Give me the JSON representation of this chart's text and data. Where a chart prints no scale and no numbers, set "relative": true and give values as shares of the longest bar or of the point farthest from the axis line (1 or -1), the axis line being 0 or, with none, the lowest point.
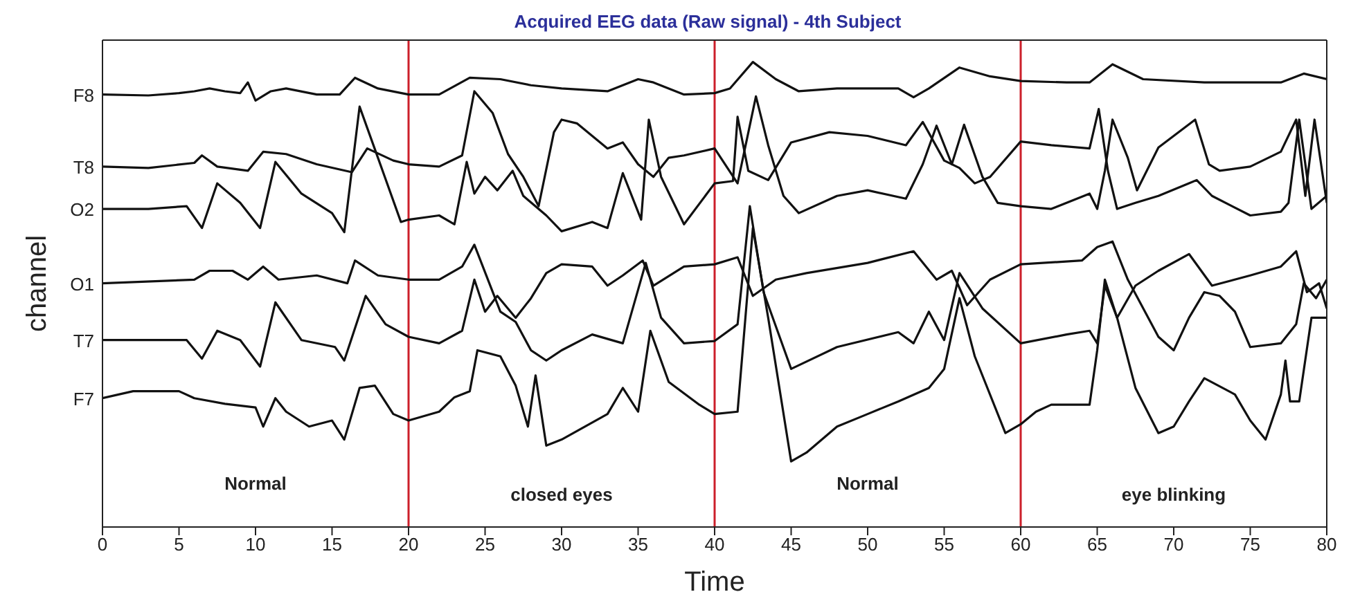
{
  "chart_data": {
    "type": "line",
    "title": "Acquired EEG data (Raw signal) - 4th Subject",
    "xlabel": "Time",
    "ylabel": "channel",
    "xlim": [
      0,
      80
    ],
    "xticks": [
      0,
      5,
      10,
      15,
      20,
      25,
      30,
      35,
      40,
      45,
      50,
      55,
      60,
      65,
      70,
      75,
      80
    ],
    "relative": true,
    "grid": false,
    "marker": "none",
    "line_style": "solid",
    "ref_lines": [
      {
        "axis": "x",
        "value": 20,
        "color": "#cc1f2a"
      },
      {
        "axis": "x",
        "value": 40,
        "color": "#cc1f2a"
      },
      {
        "axis": "x",
        "value": 60,
        "color": "#cc1f2a"
      }
    ],
    "annotations": [
      "Normal",
      "closed eyes",
      "Normal",
      "eye blinking"
    ],
    "series": [
      {
        "name": "F8",
        "color": "#111111",
        "x": [
          0,
          3,
          5,
          6,
          7,
          8,
          9,
          9.5,
          10,
          11,
          12,
          14,
          15.5,
          16.5,
          18,
          20,
          22,
          24,
          26,
          28,
          30,
          33,
          35,
          36,
          38,
          40,
          41,
          42.5,
          44,
          45.5,
          48,
          52,
          53,
          54,
          56,
          58,
          60,
          63,
          64.5,
          66,
          68,
          72,
          77,
          78.5,
          80
        ],
        "values": [
          0.93,
          0.928,
          0.933,
          0.937,
          0.943,
          0.937,
          0.933,
          0.956,
          0.917,
          0.937,
          0.943,
          0.93,
          0.93,
          0.966,
          0.943,
          0.93,
          0.93,
          0.966,
          0.963,
          0.95,
          0.943,
          0.937,
          0.963,
          0.956,
          0.93,
          0.933,
          0.943,
          1,
          0.963,
          0.937,
          0.943,
          0.943,
          0.924,
          0.943,
          0.988,
          0.969,
          0.959,
          0.956,
          0.956,
          0.995,
          0.963,
          0.956,
          0.956,
          0.975,
          0.963
        ]
      },
      {
        "name": "T8",
        "color": "#111111",
        "x": [
          0,
          3,
          6,
          6.5,
          7.5,
          9.5,
          10.5,
          12,
          14,
          16.3,
          17.3,
          19,
          20,
          22,
          23.5,
          24.3,
          25.5,
          26.5,
          27.5,
          28.5,
          29.5,
          30,
          31,
          33,
          34,
          35,
          36,
          37,
          38,
          40,
          41.5,
          42.7,
          43.5,
          44.5,
          45.5,
          48,
          50,
          52.5,
          53.6,
          54.5,
          55.5,
          56.3,
          57.5,
          58.5,
          60,
          62,
          64.5,
          65,
          65.5,
          66,
          67,
          67.6,
          69,
          71.4,
          72.3,
          73,
          75,
          77,
          78,
          78.6,
          79.2,
          80
        ],
        "values": [
          0.775,
          0.772,
          0.783,
          0.799,
          0.775,
          0.766,
          0.807,
          0.802,
          0.78,
          0.763,
          0.814,
          0.788,
          0.78,
          0.775,
          0.799,
          0.937,
          0.89,
          0.802,
          0.753,
          0.69,
          0.849,
          0.876,
          0.868,
          0.814,
          0.827,
          0.78,
          0.753,
          0.794,
          0.799,
          0.814,
          0.739,
          0.926,
          0.821,
          0.712,
          0.675,
          0.712,
          0.724,
          0.706,
          0.78,
          0.863,
          0.78,
          0.865,
          0.753,
          0.697,
          0.69,
          0.684,
          0.717,
          0.684,
          0.766,
          0.876,
          0.794,
          0.724,
          0.816,
          0.876,
          0.78,
          0.766,
          0.775,
          0.807,
          0.876,
          0.712,
          0.876,
          0.697
        ]
      },
      {
        "name": "O2",
        "color": "#111111",
        "x": [
          0,
          3,
          5.5,
          6.5,
          7.5,
          9,
          10.3,
          11.3,
          13,
          15,
          15.8,
          16.8,
          18,
          19.5,
          20,
          22,
          23,
          23.8,
          24.3,
          25,
          25.8,
          26.8,
          27.5,
          29,
          30,
          32,
          33,
          34,
          35.2,
          35.7,
          36.5,
          38,
          40,
          41.2,
          41.5,
          42.2,
          43.5,
          45,
          47.5,
          50,
          52.5,
          53.6,
          55,
          56,
          57,
          58,
          60,
          62,
          64.5,
          65.1,
          65.7,
          66.3,
          67.5,
          69,
          71,
          71.5,
          72.5,
          75,
          77,
          77.5,
          78.2,
          79,
          80
        ],
        "values": [
          0.684,
          0.684,
          0.69,
          0.643,
          0.739,
          0.697,
          0.643,
          0.785,
          0.717,
          0.675,
          0.634,
          0.904,
          0.794,
          0.656,
          0.661,
          0.67,
          0.651,
          0.785,
          0.717,
          0.753,
          0.724,
          0.766,
          0.712,
          0.67,
          0.636,
          0.656,
          0.643,
          0.761,
          0.661,
          0.876,
          0.753,
          0.651,
          0.739,
          0.744,
          0.882,
          0.766,
          0.746,
          0.827,
          0.849,
          0.841,
          0.821,
          0.871,
          0.788,
          0.772,
          0.739,
          0.753,
          0.829,
          0.821,
          0.814,
          0.899,
          0.766,
          0.684,
          0.697,
          0.712,
          0.739,
          0.746,
          0.712,
          0.67,
          0.678,
          0.697,
          0.876,
          0.684,
          0.712
        ]
      },
      {
        "name": "O1",
        "color": "#111111",
        "x": [
          0,
          6,
          7,
          8.5,
          9.5,
          10.5,
          11.5,
          14,
          16,
          16.5,
          18,
          20,
          22,
          23.5,
          24.3,
          26,
          27,
          28,
          29,
          30,
          32,
          34,
          35.5,
          36.5,
          38,
          40,
          41.5,
          42.3,
          43.2,
          45,
          48,
          52,
          53,
          54,
          55,
          56,
          57.5,
          60,
          63,
          64.5,
          65,
          65.5,
          66.3,
          67.5,
          69,
          71,
          72.5,
          75,
          77,
          78,
          78.7,
          79.5,
          80
        ],
        "values": [
          0.524,
          0.532,
          0.551,
          0.551,
          0.532,
          0.56,
          0.532,
          0.541,
          0.524,
          0.573,
          0.541,
          0.532,
          0.532,
          0.56,
          0.607,
          0.463,
          0.441,
          0.38,
          0.358,
          0.38,
          0.414,
          0.395,
          0.568,
          0.45,
          0.395,
          0.4,
          0.436,
          0.69,
          0.505,
          0.34,
          0.387,
          0.419,
          0.395,
          0.463,
          0.402,
          0.546,
          0.47,
          0.395,
          0.414,
          0.422,
          0.395,
          0.519,
          0.45,
          0.519,
          0.551,
          0.587,
          0.519,
          0.541,
          0.56,
          0.593,
          0.505,
          0.524,
          0.47
        ]
      },
      {
        "name": "T7",
        "color": "#111111",
        "x": [
          0,
          5.5,
          6.5,
          7.5,
          9,
          10.3,
          11.3,
          13,
          15.2,
          15.8,
          17.2,
          18.5,
          20,
          22,
          23.5,
          24.3,
          25,
          25.8,
          27,
          28,
          29,
          30,
          32,
          33,
          34,
          35.3,
          36,
          38,
          40,
          41.5,
          42.5,
          44,
          46,
          50,
          53,
          54.5,
          55.5,
          56.5,
          58,
          60,
          64,
          65,
          66,
          67,
          69,
          70,
          71,
          72,
          73,
          74,
          75,
          77,
          78,
          78.5,
          79.3,
          80
        ],
        "values": [
          0.402,
          0.402,
          0.362,
          0.422,
          0.402,
          0.345,
          0.483,
          0.402,
          0.387,
          0.358,
          0.497,
          0.436,
          0.409,
          0.395,
          0.422,
          0.532,
          0.463,
          0.497,
          0.45,
          0.492,
          0.546,
          0.565,
          0.56,
          0.519,
          0.541,
          0.573,
          0.519,
          0.56,
          0.565,
          0.58,
          0.497,
          0.532,
          0.546,
          0.568,
          0.593,
          0.532,
          0.551,
          0.477,
          0.532,
          0.565,
          0.573,
          0.602,
          0.614,
          0.532,
          0.409,
          0.38,
          0.45,
          0.505,
          0.497,
          0.463,
          0.387,
          0.395,
          0.436,
          0.524,
          0.492,
          0.532
        ]
      },
      {
        "name": "F7",
        "color": "#111111",
        "x": [
          0,
          2,
          5,
          6,
          8,
          10,
          10.5,
          11.3,
          12,
          13.5,
          15,
          15.8,
          16.8,
          17.8,
          19,
          20,
          22,
          23,
          24,
          24.5,
          26,
          27,
          27.8,
          28.3,
          29,
          30,
          33,
          34,
          35,
          35.8,
          37,
          39,
          40,
          41.5,
          42.5,
          43.5,
          45,
          46,
          48,
          50,
          52,
          54,
          55,
          56,
          57,
          59,
          60,
          61,
          62,
          64.5,
          65,
          65.5,
          66.3,
          67.5,
          69,
          70,
          71,
          72,
          74,
          75,
          76,
          77,
          77.3,
          77.6,
          78.2,
          79,
          80
        ],
        "values": [
          0.277,
          0.292,
          0.292,
          0.277,
          0.265,
          0.257,
          0.216,
          0.277,
          0.248,
          0.216,
          0.229,
          0.188,
          0.299,
          0.304,
          0.243,
          0.229,
          0.248,
          0.279,
          0.292,
          0.38,
          0.367,
          0.304,
          0.216,
          0.326,
          0.175,
          0.188,
          0.243,
          0.299,
          0.248,
          0.422,
          0.312,
          0.263,
          0.243,
          0.248,
          0.643,
          0.45,
          0.141,
          0.16,
          0.216,
          0.243,
          0.27,
          0.299,
          0.34,
          0.492,
          0.367,
          0.202,
          0.221,
          0.248,
          0.263,
          0.263,
          0.38,
          0.532,
          0.45,
          0.299,
          0.202,
          0.216,
          0.27,
          0.32,
          0.285,
          0.229,
          0.188,
          0.285,
          0.358,
          0.27,
          0.27,
          0.45,
          0.45
        ]
      }
    ]
  }
}
